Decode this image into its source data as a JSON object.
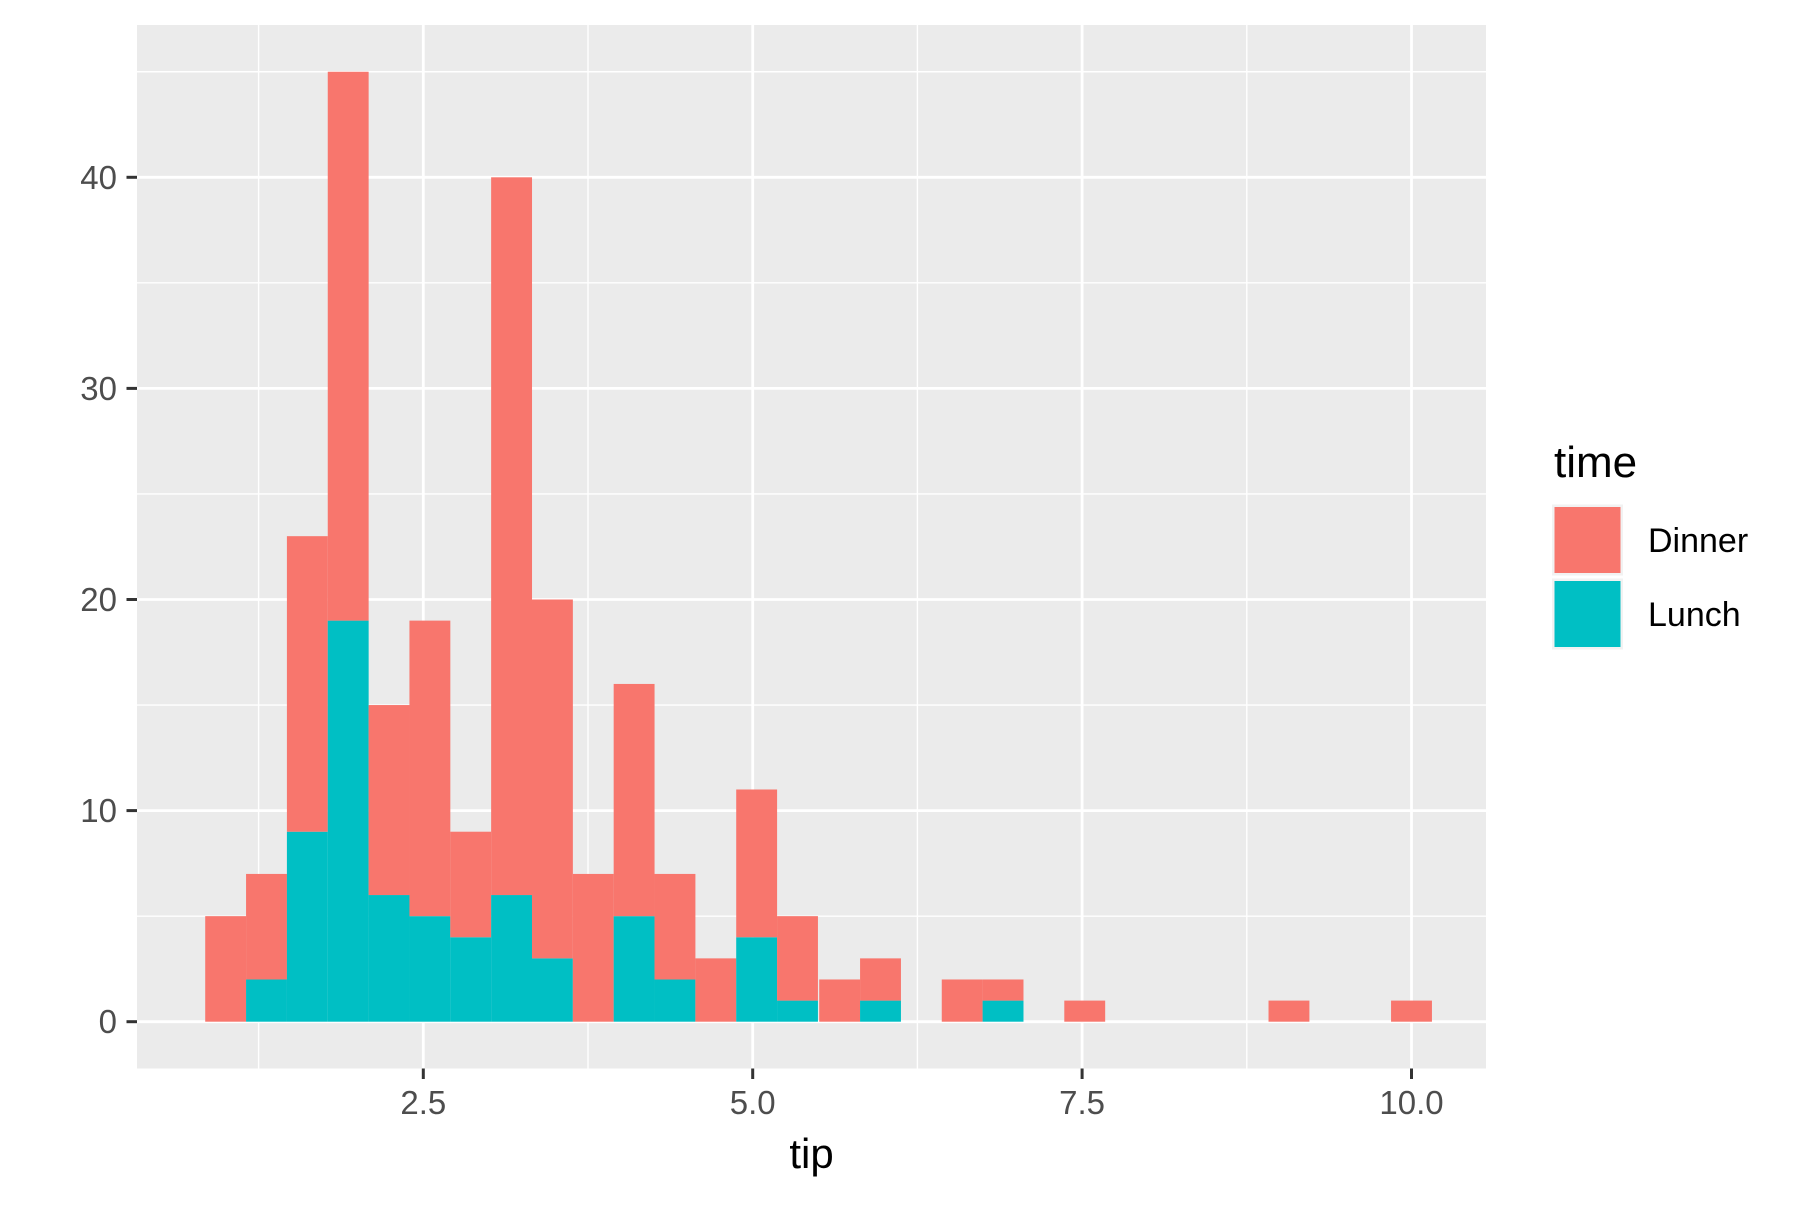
{
  "figure": {
    "background": "#ffffff",
    "panel_background": "#EBEBEB",
    "gridline_color": "#FFFFFF",
    "tick_mark_color": "#333333",
    "axis_text_color": "#4D4D4D",
    "axis_title_color": "#000000"
  },
  "x_axis": {
    "title": "tip",
    "tick_labels": [
      "2.5",
      "5.0",
      "7.5",
      "10.0"
    ],
    "tick_values": [
      2.5,
      5.0,
      7.5,
      10.0
    ],
    "minor_values": [
      1.25,
      3.75,
      6.25,
      8.75
    ]
  },
  "y_axis": {
    "title": "",
    "tick_labels": [
      "0",
      "10",
      "20",
      "30",
      "40"
    ],
    "tick_values": [
      0,
      10,
      20,
      30,
      40
    ],
    "minor_values": [
      5,
      15,
      25,
      35,
      45
    ]
  },
  "legend": {
    "title": "time",
    "entries": [
      {
        "label": "Dinner",
        "color": "#F8766D"
      },
      {
        "label": "Lunch",
        "color": "#00BFC4"
      }
    ],
    "key_background": "#F2F2F2"
  },
  "chart_data": {
    "type": "bar",
    "subtype": "stacked-histogram",
    "title": "",
    "xlabel": "tip",
    "ylabel": "",
    "xlim": [
      0.38,
      10.62
    ],
    "ylim": [
      -2.25,
      47.25
    ],
    "grid": true,
    "legend_position": "right",
    "binwidth": 0.3103,
    "bin_centers": [
      1.0,
      1.31,
      1.62,
      1.93,
      2.24,
      2.55,
      2.86,
      3.17,
      3.48,
      3.79,
      4.1,
      4.41,
      4.72,
      5.03,
      5.34,
      5.66,
      5.97,
      6.28,
      6.59,
      6.9,
      7.21,
      7.52,
      7.83,
      8.14,
      8.45,
      8.76,
      9.07,
      9.38,
      9.69,
      10.0
    ],
    "series": [
      {
        "name": "Dinner",
        "color": "#F8766D",
        "stack_order": "top",
        "total": 176,
        "values": [
          5,
          5,
          14,
          26,
          9,
          14,
          5,
          34,
          17,
          7,
          11,
          5,
          3,
          7,
          4,
          2,
          2,
          0,
          2,
          1,
          0,
          1,
          0,
          0,
          0,
          0,
          1,
          0,
          0,
          1
        ]
      },
      {
        "name": "Lunch",
        "color": "#00BFC4",
        "stack_order": "bottom",
        "total": 68,
        "values": [
          0,
          2,
          9,
          19,
          6,
          5,
          4,
          6,
          3,
          0,
          5,
          2,
          0,
          4,
          1,
          0,
          1,
          0,
          0,
          1,
          0,
          0,
          0,
          0,
          0,
          0,
          0,
          0,
          0,
          0
        ]
      }
    ],
    "stacked_totals": [
      5,
      7,
      23,
      45,
      15,
      19,
      9,
      40,
      20,
      7,
      16,
      7,
      3,
      11,
      5,
      2,
      3,
      0,
      2,
      2,
      0,
      1,
      0,
      0,
      0,
      0,
      1,
      0,
      0,
      1
    ]
  }
}
